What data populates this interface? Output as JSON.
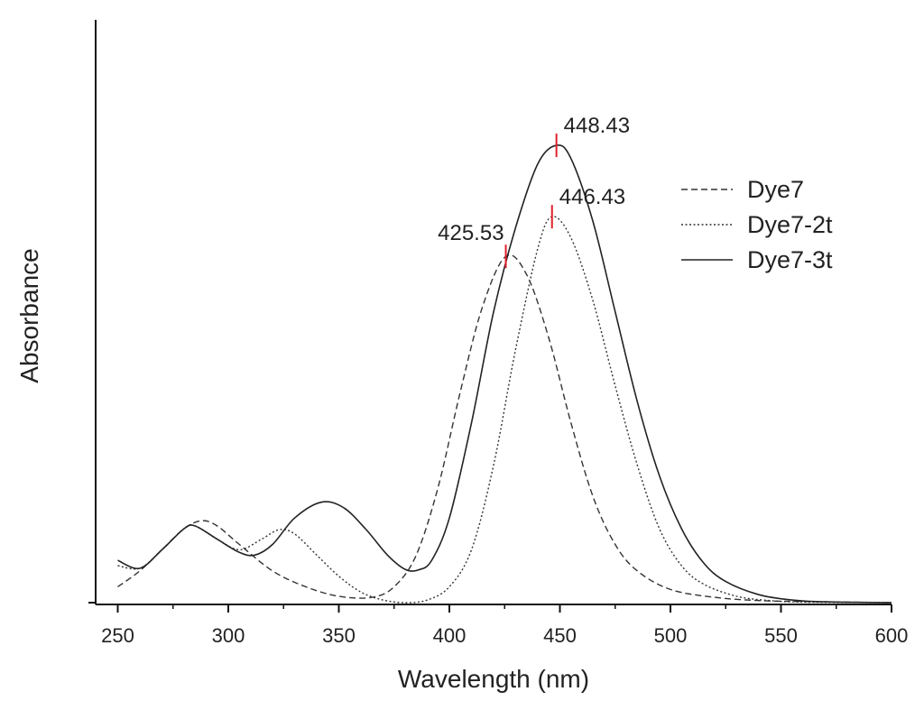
{
  "chart_data": {
    "type": "line",
    "title": "",
    "xlabel": "Wavelength (nm)",
    "ylabel": "Absorbance",
    "xlim": [
      240,
      600
    ],
    "ylim": [
      0,
      1.0
    ],
    "x_ticks": [
      250,
      300,
      350,
      400,
      450,
      500,
      550,
      600
    ],
    "y_ticks_shown": false,
    "grid": false,
    "legend_position": "right",
    "series": [
      {
        "name": "Dye7",
        "style": "dashed",
        "color": "#333333",
        "points": [
          [
            250,
            0.03
          ],
          [
            260,
            0.06
          ],
          [
            270,
            0.1
          ],
          [
            280,
            0.14
          ],
          [
            288,
            0.155
          ],
          [
            295,
            0.145
          ],
          [
            305,
            0.11
          ],
          [
            320,
            0.06
          ],
          [
            335,
            0.03
          ],
          [
            350,
            0.012
          ],
          [
            365,
            0.01
          ],
          [
            375,
            0.03
          ],
          [
            385,
            0.09
          ],
          [
            395,
            0.22
          ],
          [
            405,
            0.4
          ],
          [
            415,
            0.56
          ],
          [
            425.53,
            0.655
          ],
          [
            435,
            0.62
          ],
          [
            445,
            0.5
          ],
          [
            455,
            0.34
          ],
          [
            465,
            0.2
          ],
          [
            475,
            0.11
          ],
          [
            485,
            0.06
          ],
          [
            500,
            0.025
          ],
          [
            520,
            0.01
          ],
          [
            540,
            0.004
          ],
          [
            560,
            0.002
          ],
          [
            600,
            0.0
          ]
        ]
      },
      {
        "name": "Dye7-2t",
        "style": "dotted",
        "color": "#333333",
        "points": [
          [
            250,
            0.07
          ],
          [
            260,
            0.065
          ],
          [
            270,
            0.1
          ],
          [
            280,
            0.14
          ],
          [
            285,
            0.145
          ],
          [
            295,
            0.12
          ],
          [
            305,
            0.1
          ],
          [
            315,
            0.12
          ],
          [
            323,
            0.138
          ],
          [
            330,
            0.13
          ],
          [
            340,
            0.09
          ],
          [
            350,
            0.05
          ],
          [
            360,
            0.02
          ],
          [
            370,
            0.005
          ],
          [
            380,
            0.0
          ],
          [
            390,
            0.005
          ],
          [
            400,
            0.03
          ],
          [
            410,
            0.1
          ],
          [
            420,
            0.26
          ],
          [
            430,
            0.48
          ],
          [
            440,
            0.67
          ],
          [
            446.43,
            0.73
          ],
          [
            455,
            0.69
          ],
          [
            465,
            0.57
          ],
          [
            475,
            0.41
          ],
          [
            485,
            0.26
          ],
          [
            495,
            0.14
          ],
          [
            505,
            0.07
          ],
          [
            515,
            0.035
          ],
          [
            530,
            0.012
          ],
          [
            545,
            0.004
          ],
          [
            560,
            0.001
          ],
          [
            600,
            0.0
          ]
        ]
      },
      {
        "name": "Dye7-3t",
        "style": "solid",
        "color": "#222222",
        "points": [
          [
            250,
            0.08
          ],
          [
            260,
            0.065
          ],
          [
            270,
            0.1
          ],
          [
            280,
            0.14
          ],
          [
            285,
            0.145
          ],
          [
            295,
            0.12
          ],
          [
            305,
            0.095
          ],
          [
            312,
            0.09
          ],
          [
            320,
            0.11
          ],
          [
            330,
            0.16
          ],
          [
            342,
            0.19
          ],
          [
            352,
            0.18
          ],
          [
            362,
            0.14
          ],
          [
            372,
            0.09
          ],
          [
            380,
            0.063
          ],
          [
            386,
            0.062
          ],
          [
            392,
            0.08
          ],
          [
            400,
            0.16
          ],
          [
            410,
            0.34
          ],
          [
            420,
            0.55
          ],
          [
            430,
            0.71
          ],
          [
            440,
            0.83
          ],
          [
            448.43,
            0.865
          ],
          [
            455,
            0.84
          ],
          [
            465,
            0.72
          ],
          [
            475,
            0.55
          ],
          [
            485,
            0.38
          ],
          [
            495,
            0.24
          ],
          [
            505,
            0.14
          ],
          [
            515,
            0.075
          ],
          [
            525,
            0.04
          ],
          [
            540,
            0.015
          ],
          [
            555,
            0.005
          ],
          [
            570,
            0.0015
          ],
          [
            600,
            0.0
          ]
        ]
      }
    ],
    "annotations": [
      {
        "text": "425.53",
        "x": 425.53,
        "y": 0.655,
        "marker_color": "#e0202a"
      },
      {
        "text": "446.43",
        "x": 446.43,
        "y": 0.73,
        "marker_color": "#e0202a"
      },
      {
        "text": "448.43",
        "x": 448.43,
        "y": 0.865,
        "marker_color": "#e0202a"
      }
    ]
  }
}
